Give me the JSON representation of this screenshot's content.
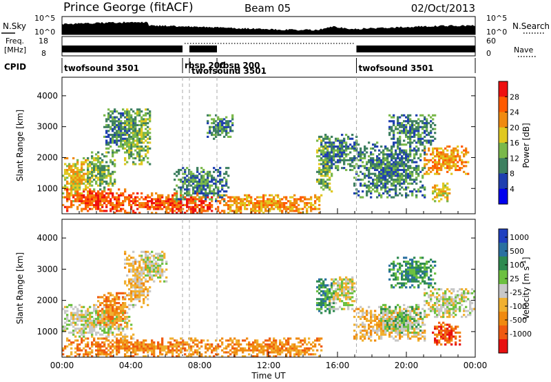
{
  "header": {
    "station": "Prince George (fitACF)",
    "beam": "Beam 05",
    "date": "02/Oct/2013"
  },
  "strips": {
    "nsky_label": "N.Sky",
    "nsearch_label": "N.Search",
    "freq_label_1": "Freq.",
    "freq_label_2": "[MHz]",
    "nave_label": "Nave",
    "cpid_label": "CPID",
    "sky_ticks": [
      "10^5",
      "10^0"
    ],
    "sky_ticks_right": [
      "10^5",
      "10^0"
    ],
    "freq_ticks": [
      "18",
      "8"
    ],
    "nave_ticks": [
      "60",
      "0"
    ]
  },
  "cpid_segments": [
    {
      "label": "twofsound 3501",
      "start_hour": 0.0,
      "end_hour": 7.0
    },
    {
      "label": "rbsp 200",
      "start_hour": 7.0,
      "end_hour": 7.4
    },
    {
      "label": "twofsound 3501",
      "start_hour": 7.4,
      "end_hour": 9.0
    },
    {
      "label": "rbsp 200",
      "start_hour": 9.0,
      "end_hour": 17.1
    },
    {
      "label": "twofsound 3501",
      "start_hour": 17.1,
      "end_hour": 24.0
    }
  ],
  "chart_data": [
    {
      "type": "heatmap",
      "quantity": "power",
      "ylabel": "Slant Range [km]",
      "xlabel": "Time UT",
      "xlim_hours": [
        0,
        24
      ],
      "ylim_km": [
        180,
        4600
      ],
      "yticks": [
        "1000",
        "2000",
        "3000",
        "4000"
      ],
      "colorbar_label": "Power [dB]",
      "colorbar_ticks": [
        "4",
        "8",
        "12",
        "16",
        "20",
        "24",
        "28"
      ],
      "colorbar_colors": [
        "#0000ee",
        "#1f3fb0",
        "#3e8060",
        "#7ab84a",
        "#e0c820",
        "#f08a10",
        "#ff5a00",
        "#ee1010"
      ],
      "clusters": [
        {
          "t0": 0.0,
          "t1": 1.5,
          "r0": 600,
          "r1": 1900,
          "level": 4
        },
        {
          "t0": 0.0,
          "t1": 3.5,
          "r0": 250,
          "r1": 900,
          "level": 6
        },
        {
          "t0": 1.5,
          "t1": 3.0,
          "r0": 1000,
          "r1": 2100,
          "level": 3
        },
        {
          "t0": 2.5,
          "t1": 4.0,
          "r0": 2200,
          "r1": 3500,
          "level": 2
        },
        {
          "t0": 3.7,
          "t1": 5.0,
          "r0": 1800,
          "r1": 3500,
          "level": 3
        },
        {
          "t0": 3.0,
          "t1": 9.0,
          "r0": 200,
          "r1": 750,
          "level": 6
        },
        {
          "t0": 9.0,
          "t1": 15.0,
          "r0": 200,
          "r1": 700,
          "level": 5
        },
        {
          "t0": 6.5,
          "t1": 9.5,
          "r0": 600,
          "r1": 1600,
          "level": 2
        },
        {
          "t0": 8.5,
          "t1": 9.8,
          "r0": 2600,
          "r1": 3300,
          "level": 2
        },
        {
          "t0": 14.8,
          "t1": 15.6,
          "r0": 900,
          "r1": 2600,
          "level": 3
        },
        {
          "t0": 15.0,
          "t1": 17.0,
          "r0": 1600,
          "r1": 2700,
          "level": 2
        },
        {
          "t0": 17.0,
          "t1": 21.0,
          "r0": 700,
          "r1": 2400,
          "level": 2
        },
        {
          "t0": 19.0,
          "t1": 21.5,
          "r0": 2400,
          "r1": 3300,
          "level": 2
        },
        {
          "t0": 21.0,
          "t1": 23.5,
          "r0": 1500,
          "r1": 2300,
          "level": 5
        },
        {
          "t0": 21.5,
          "t1": 22.5,
          "r0": 600,
          "r1": 1100,
          "level": 4
        }
      ]
    },
    {
      "type": "heatmap",
      "quantity": "velocity",
      "ylabel": "Slant Range [km]",
      "xlabel": "Time UT",
      "xlim_hours": [
        0,
        24
      ],
      "ylim_km": [
        180,
        4600
      ],
      "yticks": [
        "1000",
        "2000",
        "3000",
        "4000"
      ],
      "xticks": [
        "00:00",
        "04:00",
        "08:00",
        "12:00",
        "16:00",
        "20:00",
        "00:00"
      ],
      "colorbar_label": "Velocity [m s^-1]",
      "colorbar_ticks": [
        "1000",
        "500",
        "100",
        "25",
        "-25",
        "-100",
        "-500",
        "-1000"
      ],
      "colorbar_colors": [
        "#2040c0",
        "#2a70a0",
        "#2e8a50",
        "#6cc040",
        "#c8c8c8",
        "#f0b030",
        "#f08a10",
        "#f05a10",
        "#e81010"
      ],
      "clusters": [
        {
          "t0": 0.0,
          "t1": 4.0,
          "r0": 800,
          "r1": 1800,
          "level": 4
        },
        {
          "t0": 0.0,
          "t1": 9.0,
          "r0": 200,
          "r1": 700,
          "level": 6
        },
        {
          "t0": 2.0,
          "t1": 3.5,
          "r0": 1200,
          "r1": 2200,
          "level": 6
        },
        {
          "t0": 3.7,
          "t1": 5.0,
          "r0": 1800,
          "r1": 3500,
          "level": 5
        },
        {
          "t0": 4.5,
          "t1": 6.0,
          "r0": 2600,
          "r1": 3500,
          "level": 4
        },
        {
          "t0": 9.0,
          "t1": 15.0,
          "r0": 200,
          "r1": 700,
          "level": 6
        },
        {
          "t0": 14.8,
          "t1": 15.7,
          "r0": 1600,
          "r1": 2600,
          "level": 2
        },
        {
          "t0": 15.5,
          "t1": 17.0,
          "r0": 1700,
          "r1": 2700,
          "level": 4
        },
        {
          "t0": 17.0,
          "t1": 21.0,
          "r0": 700,
          "r1": 1700,
          "level": 5
        },
        {
          "t0": 18.5,
          "t1": 21.0,
          "r0": 1000,
          "r1": 1800,
          "level": 3
        },
        {
          "t0": 19.0,
          "t1": 21.5,
          "r0": 2400,
          "r1": 3300,
          "level": 2
        },
        {
          "t0": 21.0,
          "t1": 24.0,
          "r0": 1500,
          "r1": 2300,
          "level": 4
        },
        {
          "t0": 21.5,
          "t1": 23.0,
          "r0": 600,
          "r1": 1200,
          "level": 7
        }
      ]
    }
  ]
}
